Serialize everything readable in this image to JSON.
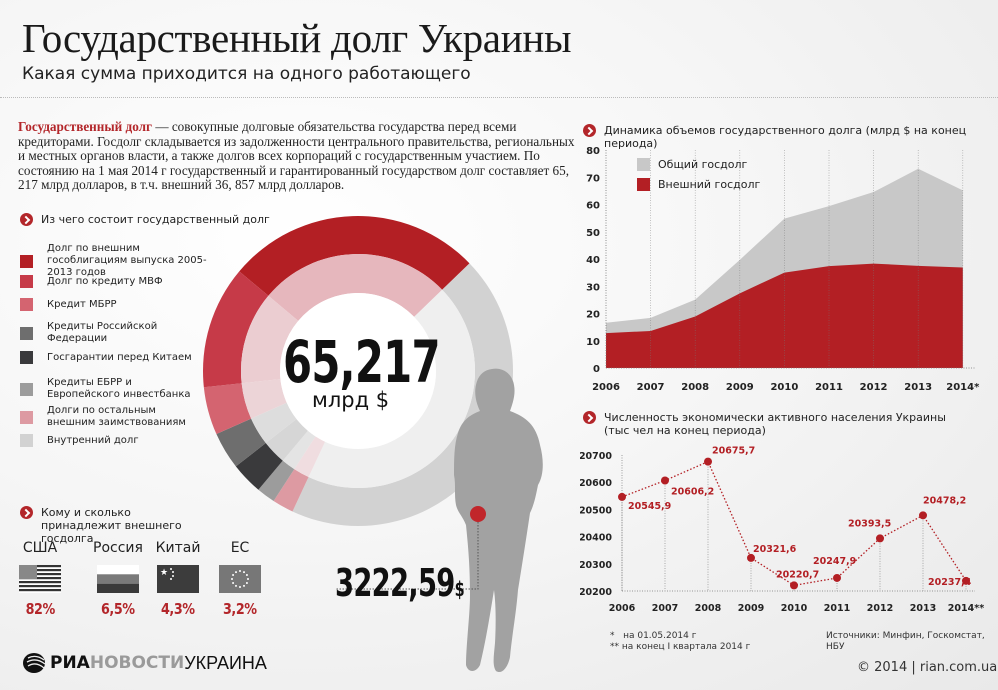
{
  "header": {
    "title": "Государственный долг Украины",
    "subtitle": "Какая сумма приходится на одного работающего"
  },
  "intro": {
    "lead": "Государственный долг",
    "text": " — совокупные долговые обязательства государства перед всеми кредиторами. Госдолг складывается из задолженности центрального правительства, региональных и местных органов власти, а также долгов всех корпораций с государственным участием. По состоянию на 1 мая 2014 г государственный и гарантированный государством долг составляет 65, 217 млрд долларов, в т.ч. внешний 36, 857 млрд долларов."
  },
  "composition": {
    "heading": "Из чего состоит государственный долг",
    "total_value": "65,217",
    "total_unit": "млрд $",
    "legend": [
      {
        "label": "Долг по внешним гособлигациям выпуска 2005-2013 годов",
        "color": "#b31f24"
      },
      {
        "label": "Долг по кредиту МВФ",
        "color": "#c63a48"
      },
      {
        "label": "Кредит МБРР",
        "color": "#d46470"
      },
      {
        "label": "Кредиты Российской Федерации",
        "color": "#6e6e6e"
      },
      {
        "label": "Госгарантии перед Китаем",
        "color": "#3a3a3c"
      },
      {
        "label": "Кредиты ЕБРР и Европейского инвестбанка",
        "color": "#9c9c9c"
      },
      {
        "label": "Долги по остальным внешним заимствованиям",
        "color": "#dd9aa2"
      },
      {
        "label": "Внутренний долг",
        "color": "#d2d2d2"
      }
    ]
  },
  "holders": {
    "heading": "Кому и сколько принадлежит внешнего госдолга",
    "items": [
      {
        "country": "США",
        "share": "82%",
        "flag": "usa-flag"
      },
      {
        "country": "Россия",
        "share": "6,5%",
        "flag": "russia-flag"
      },
      {
        "country": "Китай",
        "share": "4,3%",
        "flag": "china-flag"
      },
      {
        "country": "ЕС",
        "share": "3,2%",
        "flag": "eu-flag"
      }
    ]
  },
  "per_worker": {
    "value": "3222,59",
    "unit": "$"
  },
  "chart_data": [
    {
      "type": "area",
      "title": "Динамика объемов государственного долга (млрд $ на конец периода)",
      "categories": [
        "2006",
        "2007",
        "2008",
        "2009",
        "2010",
        "2011",
        "2012",
        "2013",
        "2014*"
      ],
      "series": [
        {
          "name": "Общий госдолг",
          "color": "#c8c8c8",
          "values": [
            16.6,
            18.4,
            25.1,
            39.7,
            54.8,
            59.4,
            64.6,
            73.1,
            65.2
          ]
        },
        {
          "name": "Внешний госдолг",
          "color": "#b31f24",
          "values": [
            12.8,
            13.6,
            18.9,
            27.4,
            35.0,
            37.4,
            38.3,
            37.5,
            36.9
          ]
        }
      ],
      "ylim": [
        0,
        80
      ],
      "yticks": [
        "0",
        "10",
        "20",
        "30",
        "40",
        "50",
        "60",
        "70",
        "80"
      ],
      "xlabel": "",
      "ylabel": "",
      "grid": "vertical dotted",
      "legend_position": "top-left"
    },
    {
      "type": "line",
      "title": "Численность экономически активного населения Украины",
      "subtitle": "(тыс чел на конец периода)",
      "categories": [
        "2006",
        "2007",
        "2008",
        "2009",
        "2010",
        "2011",
        "2012",
        "2013",
        "2014**"
      ],
      "series": [
        {
          "name": "Экономически активное население",
          "color": "#b31f24",
          "values": [
            20545.9,
            20606.2,
            20675.7,
            20321.6,
            20220.7,
            20247.9,
            20393.5,
            20478.2,
            20237.4
          ],
          "labels": [
            "20545,9",
            "20606,2",
            "20675,7",
            "20321,6",
            "20220,7",
            "20247,9",
            "20393,5",
            "20478,2",
            "20237,4"
          ]
        }
      ],
      "ylim": [
        20200,
        20700
      ],
      "yticks": [
        "20200",
        "20300",
        "20400",
        "20500",
        "20600",
        "20700"
      ],
      "xlabel": "",
      "ylabel": "",
      "grid": "vertical dotted"
    }
  ],
  "charts": {
    "debt_heading": "Динамика объемов государственного долга (млрд $ на конец периода)",
    "legend_total": "Общий госдолг",
    "legend_external": "Внешний госдолг",
    "pop_heading_1": "Численность экономически активного населения Украины",
    "pop_heading_2": "(тыс чел на конец периода)"
  },
  "footer": {
    "note1_mark": "*",
    "note1": "на 01.05.2014 г",
    "note2_mark": "**",
    "note2": "на конец I квартала 2014 г",
    "sources": "Источники: Минфин, Госкомстат, НБУ",
    "copyright": "© 2014 | rian.com.ua",
    "logo_ria": "РИА",
    "logo_novosti": "НОВОСТИ",
    "logo_ukraine": "УКРАИНА"
  }
}
